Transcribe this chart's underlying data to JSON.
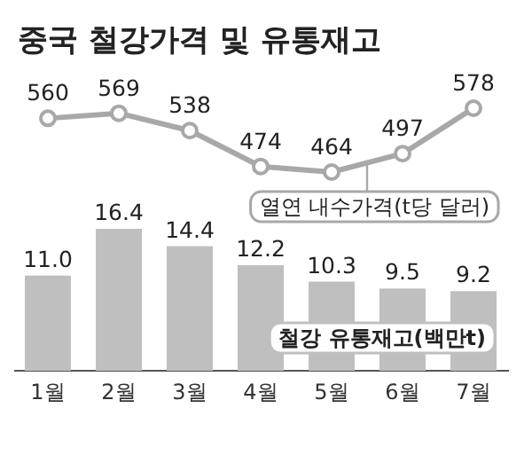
{
  "chart_data": [
    {
      "type": "line",
      "title": "중국 철강가격 및 유통재고",
      "categories": [
        null,
        null,
        null,
        null,
        null,
        null,
        null
      ],
      "data_labels": true,
      "marker": "circle",
      "series": [
        {
          "name": "열연 내수가격(t당 달러)",
          "color": "#a8a8a8",
          "values": [
            560,
            569,
            538,
            474,
            464,
            497,
            578
          ]
        }
      ]
    },
    {
      "type": "bar",
      "categories": [
        "1월",
        "2월",
        "3월",
        "4월",
        "5월",
        "6월",
        "7월"
      ],
      "series": [
        {
          "name": "철강 유통재고(백만t)",
          "color": "#bfbfbf",
          "values": [
            11.0,
            16.4,
            14.4,
            12.2,
            10.3,
            9.5,
            9.2
          ],
          "value_labels": [
            "11.0",
            "16.4",
            "14.4",
            "12.2",
            "10.3",
            "9.5",
            "9.2"
          ]
        }
      ]
    }
  ]
}
